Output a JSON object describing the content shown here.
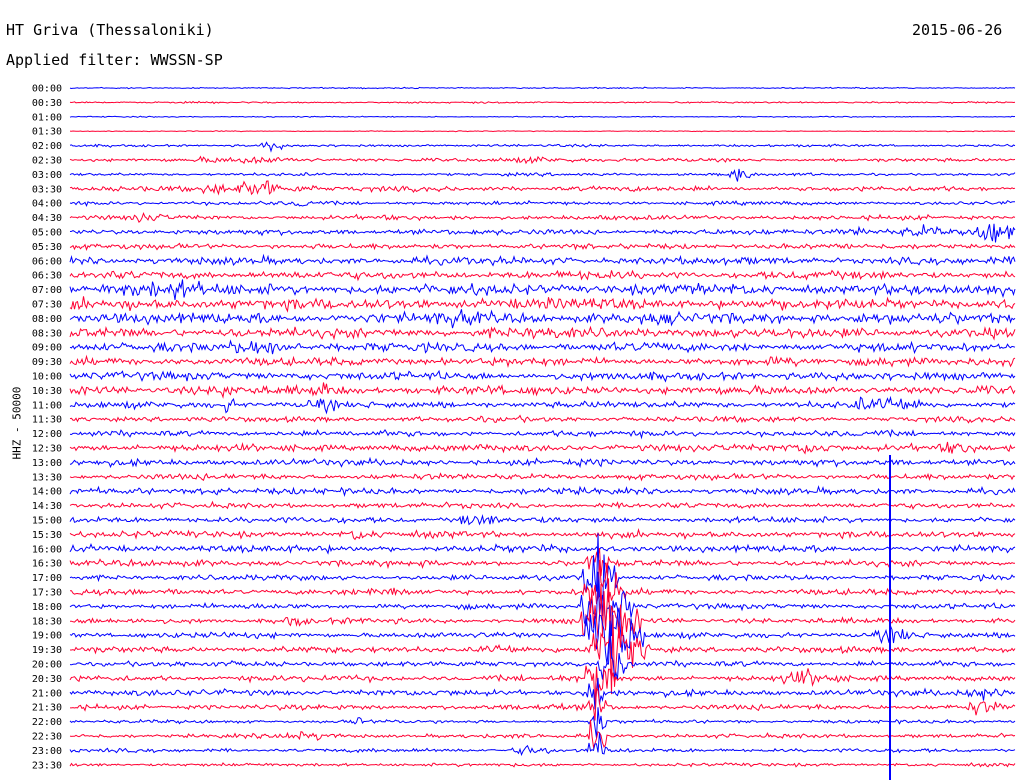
{
  "header": {
    "station": "HT Griva (Thessaloniki)",
    "date": "2015-06-26",
    "filter": "Applied filter: WWSSN-SP"
  },
  "axis": {
    "channel_label": "HHZ - 50000"
  },
  "colors": {
    "row_a": "#0000ff",
    "row_b": "#ff0033"
  },
  "rows": [
    {
      "time": "00:00",
      "color": "row_a"
    },
    {
      "time": "00:30",
      "color": "row_b"
    },
    {
      "time": "01:00",
      "color": "row_a"
    },
    {
      "time": "01:30",
      "color": "row_b"
    },
    {
      "time": "02:00",
      "color": "row_a"
    },
    {
      "time": "02:30",
      "color": "row_b"
    },
    {
      "time": "03:00",
      "color": "row_a"
    },
    {
      "time": "03:30",
      "color": "row_b"
    },
    {
      "time": "04:00",
      "color": "row_a"
    },
    {
      "time": "04:30",
      "color": "row_b"
    },
    {
      "time": "05:00",
      "color": "row_a"
    },
    {
      "time": "05:30",
      "color": "row_b"
    },
    {
      "time": "06:00",
      "color": "row_a"
    },
    {
      "time": "06:30",
      "color": "row_b"
    },
    {
      "time": "07:00",
      "color": "row_a"
    },
    {
      "time": "07:30",
      "color": "row_b"
    },
    {
      "time": "08:00",
      "color": "row_a"
    },
    {
      "time": "08:30",
      "color": "row_b"
    },
    {
      "time": "09:00",
      "color": "row_a"
    },
    {
      "time": "09:30",
      "color": "row_b"
    },
    {
      "time": "10:00",
      "color": "row_a"
    },
    {
      "time": "10:30",
      "color": "row_b"
    },
    {
      "time": "11:00",
      "color": "row_a"
    },
    {
      "time": "11:30",
      "color": "row_b"
    },
    {
      "time": "12:00",
      "color": "row_a"
    },
    {
      "time": "12:30",
      "color": "row_b"
    },
    {
      "time": "13:00",
      "color": "row_a"
    },
    {
      "time": "13:30",
      "color": "row_b"
    },
    {
      "time": "14:00",
      "color": "row_a"
    },
    {
      "time": "14:30",
      "color": "row_b"
    },
    {
      "time": "15:00",
      "color": "row_a"
    },
    {
      "time": "15:30",
      "color": "row_b"
    },
    {
      "time": "16:00",
      "color": "row_a"
    },
    {
      "time": "16:30",
      "color": "row_b"
    },
    {
      "time": "17:00",
      "color": "row_a"
    },
    {
      "time": "17:30",
      "color": "row_b"
    },
    {
      "time": "18:00",
      "color": "row_a"
    },
    {
      "time": "18:30",
      "color": "row_b"
    },
    {
      "time": "19:00",
      "color": "row_a"
    },
    {
      "time": "19:30",
      "color": "row_b"
    },
    {
      "time": "20:00",
      "color": "row_a"
    },
    {
      "time": "20:30",
      "color": "row_b"
    },
    {
      "time": "21:00",
      "color": "row_a"
    },
    {
      "time": "21:30",
      "color": "row_b"
    },
    {
      "time": "22:00",
      "color": "row_a"
    },
    {
      "time": "22:30",
      "color": "row_b"
    },
    {
      "time": "23:00",
      "color": "row_a"
    },
    {
      "time": "23:30",
      "color": "row_b"
    }
  ]
}
